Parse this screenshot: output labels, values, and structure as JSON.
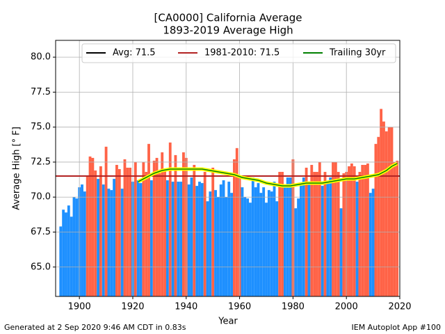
{
  "chart_data": {
    "type": "bar",
    "title": "[CA0000] California Average",
    "subtitle": "1893-2019 Average High",
    "x_label": "Year",
    "y_label": "Average High [° F]",
    "x": [
      1893,
      1894,
      1895,
      1896,
      1897,
      1898,
      1899,
      1900,
      1901,
      1902,
      1903,
      1904,
      1905,
      1906,
      1907,
      1908,
      1909,
      1910,
      1911,
      1912,
      1913,
      1914,
      1915,
      1916,
      1917,
      1918,
      1919,
      1920,
      1921,
      1922,
      1923,
      1924,
      1925,
      1926,
      1927,
      1928,
      1929,
      1930,
      1931,
      1932,
      1933,
      1934,
      1935,
      1936,
      1937,
      1938,
      1939,
      1940,
      1941,
      1942,
      1943,
      1944,
      1945,
      1946,
      1947,
      1948,
      1949,
      1950,
      1951,
      1952,
      1953,
      1954,
      1955,
      1956,
      1957,
      1958,
      1959,
      1960,
      1961,
      1962,
      1963,
      1964,
      1965,
      1966,
      1967,
      1968,
      1969,
      1970,
      1971,
      1972,
      1973,
      1974,
      1975,
      1976,
      1977,
      1978,
      1979,
      1980,
      1981,
      1982,
      1983,
      1984,
      1985,
      1986,
      1987,
      1988,
      1989,
      1990,
      1991,
      1992,
      1993,
      1994,
      1995,
      1996,
      1997,
      1998,
      1999,
      2000,
      2001,
      2002,
      2003,
      2004,
      2005,
      2006,
      2007,
      2008,
      2009,
      2010,
      2011,
      2012,
      2013,
      2014,
      2015,
      2016,
      2017,
      2018,
      2019
    ],
    "values": [
      67.9,
      69.1,
      68.9,
      69.4,
      68.6,
      70.0,
      69.9,
      70.7,
      70.9,
      70.4,
      71.5,
      72.9,
      72.8,
      71.9,
      71.3,
      72.2,
      70.9,
      73.6,
      70.6,
      70.5,
      71.3,
      72.3,
      72.0,
      70.6,
      72.7,
      72.1,
      72.1,
      71.1,
      72.5,
      71.2,
      71.0,
      72.5,
      71.8,
      73.8,
      71.2,
      72.6,
      72.8,
      71.7,
      73.2,
      72.0,
      71.2,
      73.9,
      71.1,
      73.0,
      71.1,
      71.1,
      73.2,
      72.8,
      70.9,
      71.4,
      72.3,
      70.8,
      71.1,
      71.0,
      71.8,
      69.7,
      70.4,
      72.1,
      70.5,
      70.0,
      70.9,
      71.2,
      70.0,
      71.1,
      70.3,
      72.7,
      73.5,
      71.5,
      70.7,
      70.0,
      69.9,
      69.6,
      71.4,
      70.7,
      71.0,
      70.3,
      70.7,
      69.6,
      70.5,
      70.4,
      71.1,
      69.7,
      71.8,
      71.8,
      70.9,
      71.4,
      71.4,
      72.7,
      69.2,
      69.9,
      70.9,
      71.4,
      72.1,
      71.1,
      72.3,
      71.8,
      71.8,
      72.5,
      70.8,
      71.8,
      71.1,
      71.4,
      72.5,
      72.5,
      71.8,
      69.2,
      71.7,
      71.8,
      72.2,
      72.4,
      72.2,
      71.1,
      71.8,
      72.3,
      72.3,
      72.4,
      70.3,
      70.6,
      73.8,
      74.3,
      76.3,
      75.4,
      74.7,
      75.0,
      75.0,
      72.5,
      72.6
    ],
    "above_color": "#ff6347",
    "below_color": "#1e90ff",
    "reference_lines": [
      {
        "name": "Avg: 71.5",
        "value": 71.5,
        "color": "#000000"
      },
      {
        "name": "1981-2010: 71.5",
        "value": 71.5,
        "color": "#b22222"
      }
    ],
    "trailing": {
      "name": "Trailing 30yr",
      "color": "#008000",
      "outline": "#ffff00",
      "x": [
        1922,
        1925,
        1928,
        1931,
        1934,
        1937,
        1940,
        1943,
        1946,
        1949,
        1952,
        1955,
        1958,
        1961,
        1964,
        1967,
        1970,
        1973,
        1976,
        1979,
        1982,
        1985,
        1988,
        1991,
        1994,
        1997,
        2000,
        2003,
        2006,
        2009,
        2012,
        2015,
        2017,
        2019
      ],
      "values": [
        71.1,
        71.4,
        71.7,
        71.9,
        72.0,
        72.0,
        72.0,
        72.0,
        72.0,
        71.9,
        71.8,
        71.7,
        71.6,
        71.4,
        71.3,
        71.2,
        71.0,
        70.9,
        70.8,
        70.8,
        70.9,
        71.0,
        71.0,
        71.0,
        71.1,
        71.2,
        71.3,
        71.3,
        71.4,
        71.5,
        71.6,
        71.9,
        72.2,
        72.4
      ]
    },
    "xlim": [
      1891.1,
      2020
    ],
    "ylim": [
      62.9,
      81.2
    ],
    "xticks": [
      1900,
      1920,
      1940,
      1960,
      1980,
      2000,
      2020
    ],
    "yticks": [
      {
        "value": 65,
        "label": "65.0"
      },
      {
        "value": 67.5,
        "label": "67.5"
      },
      {
        "value": 70,
        "label": "70.0"
      },
      {
        "value": 72.5,
        "label": "72.5"
      },
      {
        "value": 75,
        "label": "75.0"
      },
      {
        "value": 77.5,
        "label": "77.5"
      },
      {
        "value": 80,
        "label": "80.0"
      }
    ],
    "grid": true,
    "legend": "top",
    "footer_left": "Generated at 2 Sep 2020 9:46 AM CDT in 0.83s",
    "footer_right": "IEM Autoplot App #100"
  }
}
